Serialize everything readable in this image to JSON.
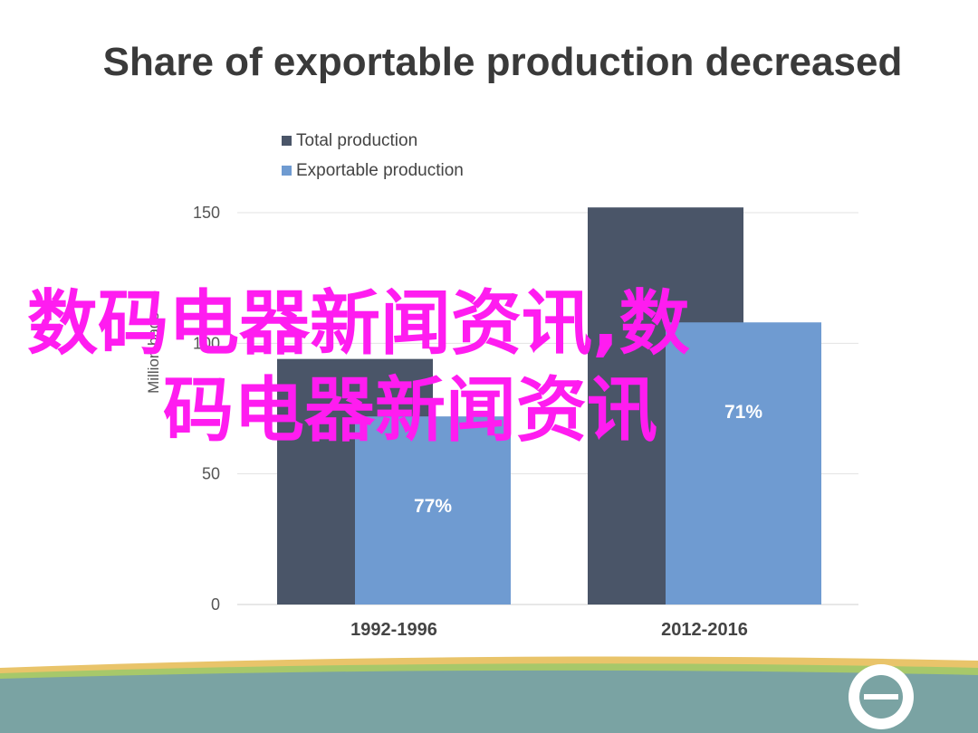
{
  "title": "Share of exportable production decreased",
  "watermark": {
    "line1": "数码电器新闻资讯,数",
    "line2": "码电器新闻资讯"
  },
  "chart_data": {
    "type": "bar",
    "categories": [
      "1992-1996",
      "2012-2016"
    ],
    "series": [
      {
        "name": "Total production",
        "values": [
          94,
          152
        ],
        "color": "#4a5568"
      },
      {
        "name": "Exportable production",
        "values": [
          72,
          108
        ],
        "color": "#6f9bd1",
        "data_labels": [
          "77%",
          "71%"
        ]
      }
    ],
    "ylabel": "Million bags",
    "xlabel": "",
    "ylim": [
      0,
      150
    ],
    "yticks": [
      0,
      50,
      100,
      150
    ],
    "legend": "top-left",
    "grid": true
  },
  "colors": {
    "footer_band": "#7aa3a3",
    "footer_stripe_gold": "#e9c46a",
    "footer_stripe_green": "#a7c86a",
    "logo": "#ffffff"
  },
  "icons": {
    "logo": "circle-logo-icon"
  }
}
